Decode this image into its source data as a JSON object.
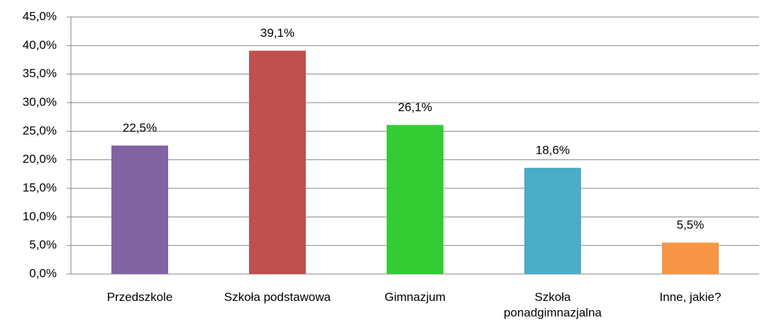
{
  "chart_data": {
    "type": "bar",
    "categories": [
      "Przedszkole",
      "Szkoła podstawowa",
      "Gimnazjum",
      "Szkoła ponadgimnazjalna",
      "Inne, jakie?"
    ],
    "values": [
      22.5,
      39.1,
      26.1,
      18.6,
      5.5
    ],
    "value_labels": [
      "22,5%",
      "39,1%",
      "26,1%",
      "18,6%",
      "5,5%"
    ],
    "colors": [
      "#8064a2",
      "#c0504d",
      "#33cc33",
      "#4bacc6",
      "#f79646"
    ],
    "ylim": [
      0,
      45
    ],
    "yticks": [
      {
        "value": 0,
        "label": "0,0%"
      },
      {
        "value": 5,
        "label": "5,0%"
      },
      {
        "value": 10,
        "label": "10,0%"
      },
      {
        "value": 15,
        "label": "15,0%"
      },
      {
        "value": 20,
        "label": "20,0%"
      },
      {
        "value": 25,
        "label": "25,0%"
      },
      {
        "value": 30,
        "label": "30,0%"
      },
      {
        "value": 35,
        "label": "35,0%"
      },
      {
        "value": 40,
        "label": "40,0%"
      },
      {
        "value": 45,
        "label": "45,0%"
      }
    ],
    "grid": true
  }
}
